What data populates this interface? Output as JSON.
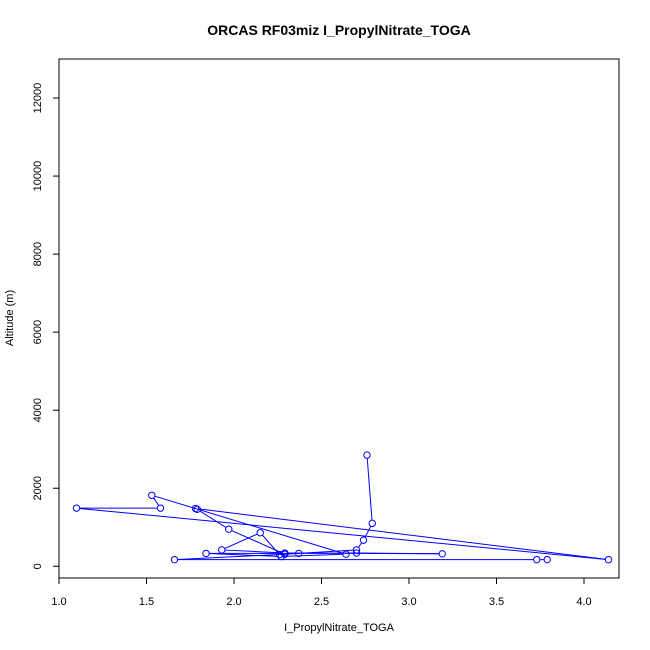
{
  "chart_data": {
    "type": "line",
    "title": "ORCAS RF03miz I_PropylNitrate_TOGA",
    "xlabel": "I_PropylNitrate_TOGA",
    "ylabel": "Altitude (m)",
    "xlim": [
      1.0,
      4.2
    ],
    "ylim": [
      -300,
      13000
    ],
    "xticks": [
      "1.0",
      "1.5",
      "2.0",
      "2.5",
      "3.0",
      "3.5",
      "4.0"
    ],
    "yticks": [
      "0",
      "2000",
      "4000",
      "6000",
      "8000",
      "10000",
      "12000"
    ],
    "grid": false,
    "series": [
      {
        "color": "#0000ff",
        "marker": "open-circle",
        "x": [
          2.76,
          2.79,
          2.74,
          2.7,
          2.26,
          2.15,
          1.93,
          2.29,
          3.19,
          2.7,
          2.37,
          1.84,
          2.27,
          2.64,
          1.53,
          1.58,
          1.1,
          4.14,
          1.78,
          1.79,
          1.97,
          2.29,
          1.66,
          3.73,
          3.79
        ],
        "y": [
          2850,
          1100,
          670,
          420,
          300,
          860,
          420,
          340,
          320,
          340,
          330,
          330,
          250,
          310,
          1820,
          1490,
          1490,
          170,
          1480,
          1460,
          950,
          310,
          170,
          170,
          170
        ]
      }
    ]
  }
}
